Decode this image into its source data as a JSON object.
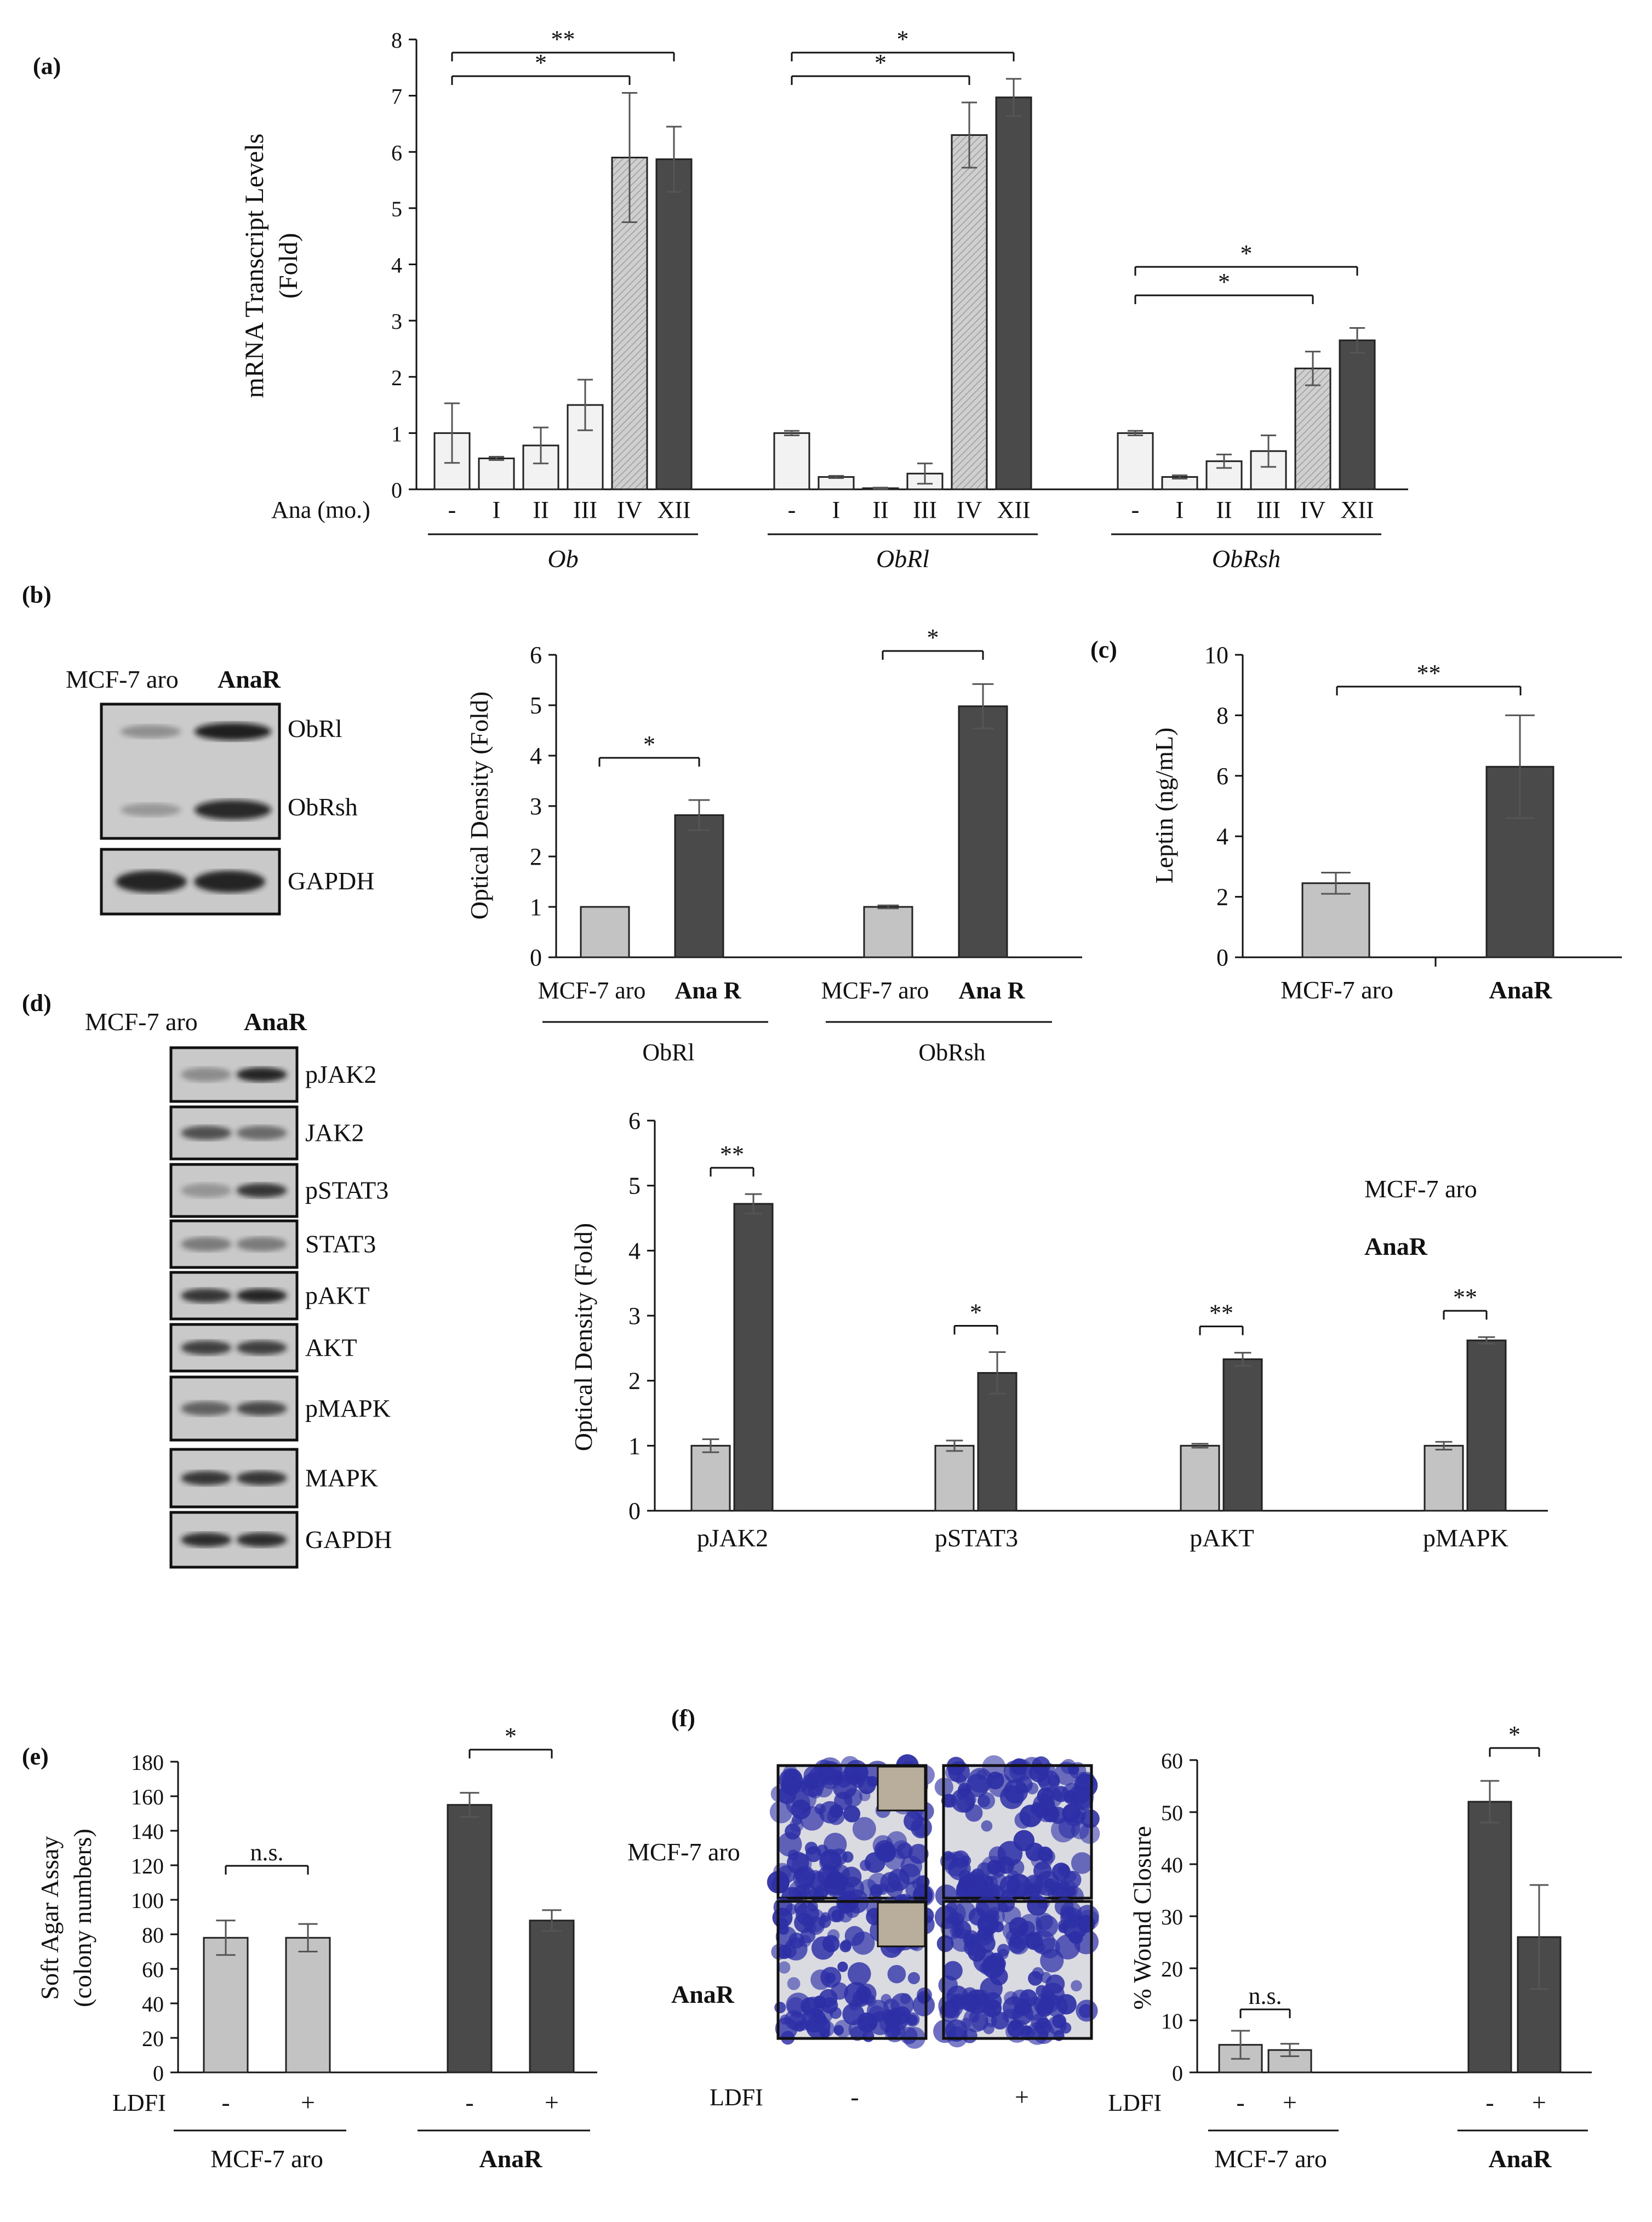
{
  "panel_labels": {
    "a": "(a)",
    "b": "(b)",
    "c": "(c)",
    "d": "(d)",
    "e": "(e)",
    "f": "(f)"
  },
  "colors": {
    "light": "#f2f2f2",
    "hatched": "#cdcdcd",
    "dark": "#4a4a4a",
    "grey": "#c3c3c3",
    "stain": "#2d2fa6",
    "background_cells": "#d9dbe1",
    "inset": "#b9ae9c"
  },
  "chart_data": [
    {
      "id": "a",
      "type": "bar",
      "ylabel_lines": [
        "mRNA Transcript Levels",
        "(Fold)"
      ],
      "ylim": [
        0,
        8
      ],
      "yticks": [
        0,
        1,
        2,
        3,
        4,
        5,
        6,
        7,
        8
      ],
      "row_label": "Ana (mo.)",
      "categories": [
        "-",
        "I",
        "II",
        "III",
        "IV",
        "XII"
      ],
      "groups": [
        {
          "label": "Ob",
          "values": [
            1.0,
            0.55,
            0.78,
            1.5,
            5.9,
            5.87
          ],
          "errors": [
            0.53,
            0.03,
            0.32,
            0.45,
            1.15,
            0.58
          ],
          "sig": [
            {
              "from": 0,
              "to": 5,
              "mark": "**"
            },
            {
              "from": 0,
              "to": 4,
              "mark": "*"
            }
          ]
        },
        {
          "label": "ObRl",
          "values": [
            1.0,
            0.22,
            0.02,
            0.28,
            6.3,
            6.97
          ],
          "errors": [
            0.04,
            0.02,
            0.01,
            0.18,
            0.58,
            0.33
          ],
          "sig": [
            {
              "from": 0,
              "to": 5,
              "mark": "*"
            },
            {
              "from": 0,
              "to": 4,
              "mark": "*"
            }
          ]
        },
        {
          "label": "ObRsh",
          "values": [
            1.0,
            0.22,
            0.5,
            0.68,
            2.15,
            2.65
          ],
          "errors": [
            0.04,
            0.03,
            0.12,
            0.28,
            0.3,
            0.22
          ],
          "sig": [
            {
              "from": 0,
              "to": 5,
              "mark": "*"
            },
            {
              "from": 0,
              "to": 4,
              "mark": "*"
            }
          ]
        }
      ]
    },
    {
      "id": "b",
      "type": "bar",
      "ylabel": "Optical Density (Fold)",
      "ylim": [
        0,
        6
      ],
      "yticks": [
        0,
        1,
        2,
        3,
        4,
        5,
        6
      ],
      "categories": [
        "MCF-7 aro",
        "Ana R"
      ],
      "groups": [
        {
          "label": "ObRl",
          "values": [
            1.0,
            2.82
          ],
          "errors": [
            0.0,
            0.3
          ],
          "sig": [
            {
              "from": 0,
              "to": 1,
              "mark": "*"
            }
          ]
        },
        {
          "label": "ObRsh",
          "values": [
            1.0,
            4.98
          ],
          "errors": [
            0.03,
            0.44
          ],
          "sig": [
            {
              "from": 0,
              "to": 1,
              "mark": "*"
            }
          ]
        }
      ]
    },
    {
      "id": "c",
      "type": "bar",
      "ylabel": "Leptin (ng/mL)",
      "ylim": [
        0,
        10
      ],
      "yticks": [
        0,
        2,
        4,
        6,
        8,
        10
      ],
      "categories": [
        "MCF-7 aro",
        "AnaR"
      ],
      "values": [
        2.45,
        6.3
      ],
      "errors": [
        0.35,
        1.7
      ],
      "sig": [
        {
          "from": 0,
          "to": 1,
          "mark": "**"
        }
      ]
    },
    {
      "id": "d",
      "type": "bar",
      "ylabel": "Optical Density (Fold)",
      "ylim": [
        0,
        6
      ],
      "yticks": [
        0,
        1,
        2,
        3,
        4,
        5,
        6
      ],
      "legend": [
        "MCF-7 aro",
        "AnaR"
      ],
      "categories": [
        "pJAK2",
        "pSTAT3",
        "pAKT",
        "pMAPK"
      ],
      "series": [
        {
          "name": "MCF-7 aro",
          "values": [
            1.0,
            1.0,
            1.0,
            1.0
          ],
          "errors": [
            0.1,
            0.08,
            0.03,
            0.06
          ]
        },
        {
          "name": "AnaR",
          "values": [
            4.72,
            2.12,
            2.33,
            2.62
          ],
          "errors": [
            0.15,
            0.32,
            0.1,
            0.05
          ]
        }
      ],
      "sig": [
        "**",
        "*",
        "**",
        "**"
      ]
    },
    {
      "id": "e",
      "type": "bar",
      "ylabel_lines": [
        "Soft Agar Assay",
        "(colony numbers)"
      ],
      "ylim": [
        0,
        180
      ],
      "yticks": [
        0,
        20,
        40,
        60,
        80,
        100,
        120,
        140,
        160,
        180
      ],
      "row_label": "LDFI",
      "treatment": [
        "-",
        "+"
      ],
      "groups": [
        {
          "label": "MCF-7 aro",
          "values": [
            78,
            78
          ],
          "errors": [
            10,
            8
          ],
          "sig": "n.s."
        },
        {
          "label": "AnaR",
          "values": [
            155,
            88
          ],
          "errors": [
            7,
            6
          ],
          "sig": "*"
        }
      ]
    },
    {
      "id": "f",
      "type": "bar",
      "ylabel": "% Wound Closure",
      "ylim": [
        0,
        60
      ],
      "yticks": [
        0,
        10,
        20,
        30,
        40,
        50,
        60
      ],
      "row_label": "LDFI",
      "treatment": [
        "-",
        "+"
      ],
      "groups": [
        {
          "label": "MCF-7 aro",
          "values": [
            5.3,
            4.3
          ],
          "errors": [
            2.7,
            1.2
          ],
          "sig": "n.s."
        },
        {
          "label": "AnaR",
          "values": [
            52,
            26
          ],
          "errors": [
            4,
            10
          ],
          "sig": "*"
        }
      ]
    }
  ],
  "blots": {
    "b": {
      "header": [
        "MCF-7 aro",
        "AnaR"
      ],
      "bands": [
        "ObRl",
        "ObRsh",
        "GAPDH"
      ]
    },
    "d": {
      "header": [
        "MCF-7 aro",
        "AnaR"
      ],
      "bands": [
        "pJAK2",
        "JAK2",
        "pSTAT3",
        "STAT3",
        "pAKT",
        "AKT",
        "pMAPK",
        "MAPK",
        "GAPDH"
      ]
    }
  },
  "micrographs": {
    "rows": [
      "MCF-7 aro",
      "AnaR"
    ],
    "row_label": "LDFI",
    "treatment": [
      "-",
      "+"
    ]
  }
}
